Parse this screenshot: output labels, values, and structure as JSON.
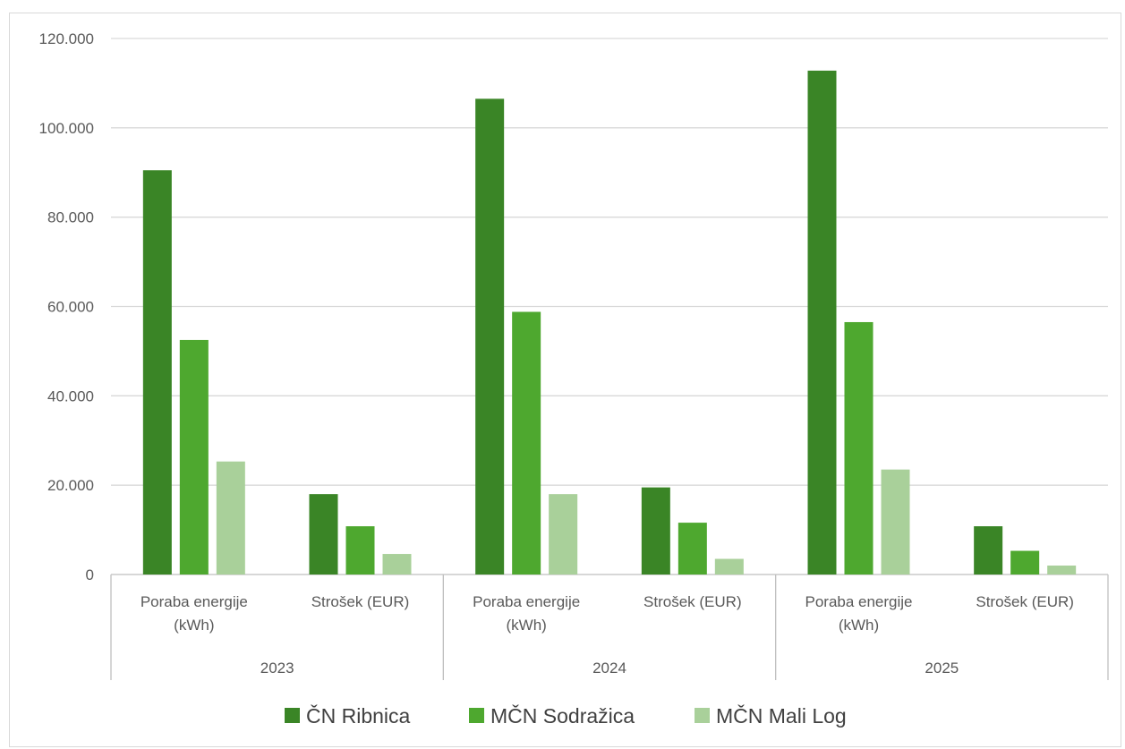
{
  "chart_data": {
    "type": "bar",
    "groups": [
      {
        "label": "2023",
        "categories": [
          "Poraba energije (kWh)",
          "Strošek (EUR)"
        ]
      },
      {
        "label": "2024",
        "categories": [
          "Poraba energije (kWh)",
          "Strošek (EUR)"
        ]
      },
      {
        "label": "2025",
        "categories": [
          "Poraba energije (kWh)",
          "Strošek (EUR)"
        ]
      }
    ],
    "category_lines": [
      [
        "Poraba energije",
        "(kWh)"
      ],
      [
        "Strošek (EUR)"
      ]
    ],
    "series": [
      {
        "name": "ČN Ribnica",
        "color": "#3a8526",
        "values": [
          90500,
          18000,
          106500,
          19500,
          112800,
          10800
        ]
      },
      {
        "name": "MČN Sodražica",
        "color": "#4ea82f",
        "values": [
          52500,
          10800,
          58800,
          11600,
          56500,
          5300
        ]
      },
      {
        "name": "MČN Mali Log",
        "color": "#a9d09a",
        "values": [
          25300,
          4600,
          18000,
          3500,
          23500,
          2000
        ]
      }
    ],
    "ylim": [
      0,
      120000
    ],
    "yticks": [
      0,
      20000,
      40000,
      60000,
      80000,
      100000,
      120000
    ],
    "ytick_labels": [
      "0",
      "20.000",
      "40.000",
      "60.000",
      "80.000",
      "100.000",
      "120.000"
    ],
    "grid": true,
    "legend_position": "bottom",
    "title": "",
    "xlabel": "",
    "ylabel": ""
  }
}
